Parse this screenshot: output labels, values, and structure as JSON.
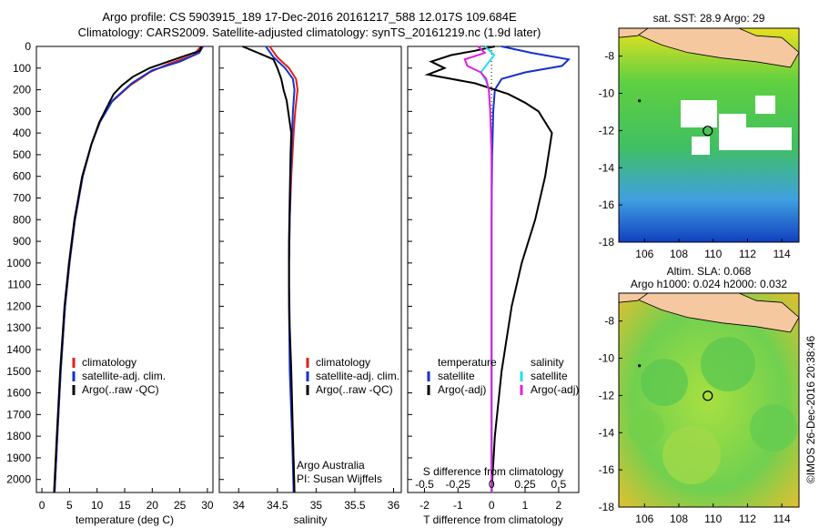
{
  "header": {
    "title_line1": "Argo profile: CS 5903915_189 17-Dec-2016 20161217_588 12.017S 109.684E",
    "title_line2": "Climatology: CARS2009. Satellite-adjusted climatology: synTS_20161219.nc (1.9d later)"
  },
  "colors": {
    "climatology": "#e0201c",
    "satellite": "#1432c8",
    "argo": "#000000",
    "cyan": "#22e0e8",
    "magenta": "#e020e0",
    "land": "#f5c8a0"
  },
  "chart_data": [
    {
      "type": "line",
      "id": "temperature",
      "xlabel": "temperature (deg C)",
      "ylabel": "",
      "xlim": [
        -1,
        31
      ],
      "ylim": [
        2060,
        0
      ],
      "xticks": [
        "0",
        "5",
        "10",
        "15",
        "20",
        "25",
        "30"
      ],
      "yticks": [
        "0",
        "100",
        "200",
        "300",
        "400",
        "500",
        "600",
        "700",
        "800",
        "900",
        "1000",
        "1100",
        "1200",
        "1300",
        "1400",
        "1500",
        "1600",
        "1700",
        "1800",
        "1900",
        "2000"
      ],
      "legend": [
        "climatology",
        "satellite-adj. clim.",
        "Argo(..raw -QC)"
      ],
      "series": [
        {
          "name": "climatology",
          "depth": [
            0,
            40,
            80,
            120,
            180,
            260,
            350,
            450,
            600,
            800,
            1000,
            1200,
            1500,
            1800,
            2060
          ],
          "values": [
            28.8,
            27.5,
            23,
            19.5,
            16,
            12.5,
            10.5,
            9,
            7.4,
            6,
            5,
            4.2,
            3.4,
            2.8,
            2.3
          ]
        },
        {
          "name": "satellite-adj. clim.",
          "depth": [
            0,
            30,
            70,
            110,
            170,
            250,
            350,
            450,
            600,
            800,
            1000,
            1200,
            1500,
            1800,
            2060
          ],
          "values": [
            29.2,
            28.5,
            25,
            20,
            16.3,
            12.8,
            10.5,
            9,
            7.4,
            6,
            5,
            4.2,
            3.4,
            2.8,
            2.3
          ]
        },
        {
          "name": "Argo(..raw -QC)",
          "depth": [
            0,
            20,
            60,
            100,
            140,
            180,
            220,
            260,
            350,
            450,
            600,
            800,
            1000,
            1200,
            1500,
            1800,
            2060
          ],
          "values": [
            28.9,
            28.6,
            24,
            19.5,
            16.5,
            14.5,
            13,
            12.2,
            10.4,
            9,
            7.3,
            5.9,
            4.9,
            4.1,
            3.3,
            2.7,
            2.2
          ]
        }
      ]
    },
    {
      "type": "line",
      "id": "salinity",
      "xlabel": "salinity",
      "xlim": [
        33.75,
        36.1
      ],
      "ylim": [
        2060,
        0
      ],
      "xticks": [
        "34",
        "34.5",
        "35",
        "35.5",
        "36"
      ],
      "legend": [
        "climatology",
        "satellite-adj. clim.",
        "Argo(..raw -QC)"
      ],
      "annotation": [
        "Argo Australia",
        "PI: Susan Wijffels"
      ],
      "series": [
        {
          "name": "climatology",
          "depth": [
            0,
            50,
            100,
            150,
            200,
            300,
            400,
            600,
            800,
            1000,
            1200,
            1500,
            1800,
            2060
          ],
          "values": [
            34.4,
            34.5,
            34.65,
            34.74,
            34.76,
            34.73,
            34.71,
            34.68,
            34.66,
            34.65,
            34.65,
            34.67,
            34.7,
            34.72
          ]
        },
        {
          "name": "satellite-adj. clim.",
          "depth": [
            0,
            50,
            100,
            150,
            200,
            300,
            400,
            600,
            800,
            1000,
            1200,
            1500,
            1800,
            2060
          ],
          "values": [
            34.35,
            34.45,
            34.6,
            34.7,
            34.72,
            34.7,
            34.69,
            34.67,
            34.66,
            34.65,
            34.65,
            34.66,
            34.69,
            34.71
          ]
        },
        {
          "name": "Argo(..raw -QC)",
          "depth": [
            0,
            30,
            60,
            100,
            150,
            200,
            250,
            300,
            400,
            500,
            700,
            900,
            1100,
            1300,
            1500,
            1800,
            2060
          ],
          "values": [
            34.05,
            34.25,
            34.45,
            34.5,
            34.55,
            34.58,
            34.62,
            34.64,
            34.68,
            34.67,
            34.66,
            34.65,
            34.65,
            34.66,
            34.68,
            34.7,
            34.72
          ]
        }
      ]
    },
    {
      "type": "line",
      "id": "differences",
      "xlabel": "T difference from climatology",
      "x2label": "S difference from climatology",
      "xlim": [
        -2.5,
        2.6
      ],
      "ylim": [
        2060,
        0
      ],
      "xticks": [
        "-2",
        "-1",
        "0",
        "1",
        "2"
      ],
      "x2ticks": [
        "-0.5",
        "-0.25",
        "0",
        "0.25",
        "0.5"
      ],
      "legend_headers": [
        "temperature",
        "salinity"
      ],
      "legend": [
        "satellite",
        "Argo(-adj)",
        "satellite",
        "Argo(-adj)"
      ],
      "series": [
        {
          "name": "T satellite",
          "depth": [
            0,
            30,
            60,
            90,
            120,
            150,
            200,
            300,
            500,
            800,
            1200,
            1600,
            2060
          ],
          "values": [
            0.3,
            1.2,
            2.3,
            2.1,
            1.0,
            0.3,
            0.1,
            0.05,
            0.02,
            0,
            0,
            0,
            0
          ]
        },
        {
          "name": "T Argo(-adj)",
          "depth": [
            0,
            20,
            40,
            70,
            100,
            130,
            170,
            220,
            260,
            300,
            400,
            600,
            800,
            1000,
            1200,
            1500,
            1800,
            2060
          ],
          "values": [
            0.1,
            -0.5,
            -1.2,
            -1.8,
            -1.4,
            -1.9,
            -0.5,
            0.5,
            1.0,
            1.4,
            1.8,
            1.6,
            1.3,
            0.9,
            0.6,
            0.3,
            0.1,
            0
          ]
        },
        {
          "name": "S satellite",
          "depth": [
            0,
            40,
            80,
            120,
            160,
            200,
            300,
            500,
            800,
            1200,
            1600,
            2060
          ],
          "values": [
            -0.05,
            0.02,
            -0.03,
            -0.08,
            -0.04,
            -0.02,
            -0.01,
            0,
            0,
            0,
            0,
            0
          ]
        },
        {
          "name": "S Argo(-adj)",
          "depth": [
            0,
            30,
            60,
            90,
            120,
            150,
            200,
            300,
            500,
            800,
            1200,
            1600,
            2060
          ],
          "values": [
            -0.1,
            -0.05,
            -0.2,
            -0.18,
            -0.08,
            -0.04,
            -0.02,
            -0.01,
            0,
            0,
            0,
            0,
            0
          ]
        }
      ]
    },
    {
      "type": "heatmap",
      "id": "sst_map",
      "title": "sat. SST: 28.9 Argo: 29",
      "xlim": [
        104.5,
        115
      ],
      "ylim": [
        -18,
        -6.5
      ],
      "xticks": [
        "106",
        "108",
        "110",
        "112",
        "114"
      ],
      "yticks": [
        "-8",
        "-10",
        "-12",
        "-14",
        "-16",
        "-18"
      ],
      "marker": [
        109.684,
        -12.017
      ]
    },
    {
      "type": "heatmap",
      "id": "sla_map",
      "title_line1": "Altim. SLA: 0.068",
      "title_line2": "Argo h1000: 0.024 h2000: 0.032",
      "side_label": "©IMOS 26-Dec-2016 20:38:46",
      "xlim": [
        104.5,
        115
      ],
      "ylim": [
        -18,
        -6.5
      ],
      "xticks": [
        "106",
        "108",
        "110",
        "112",
        "114"
      ],
      "yticks": [
        "-8",
        "-10",
        "-12",
        "-14",
        "-16",
        "-18"
      ],
      "marker": [
        109.684,
        -12.017
      ]
    }
  ]
}
